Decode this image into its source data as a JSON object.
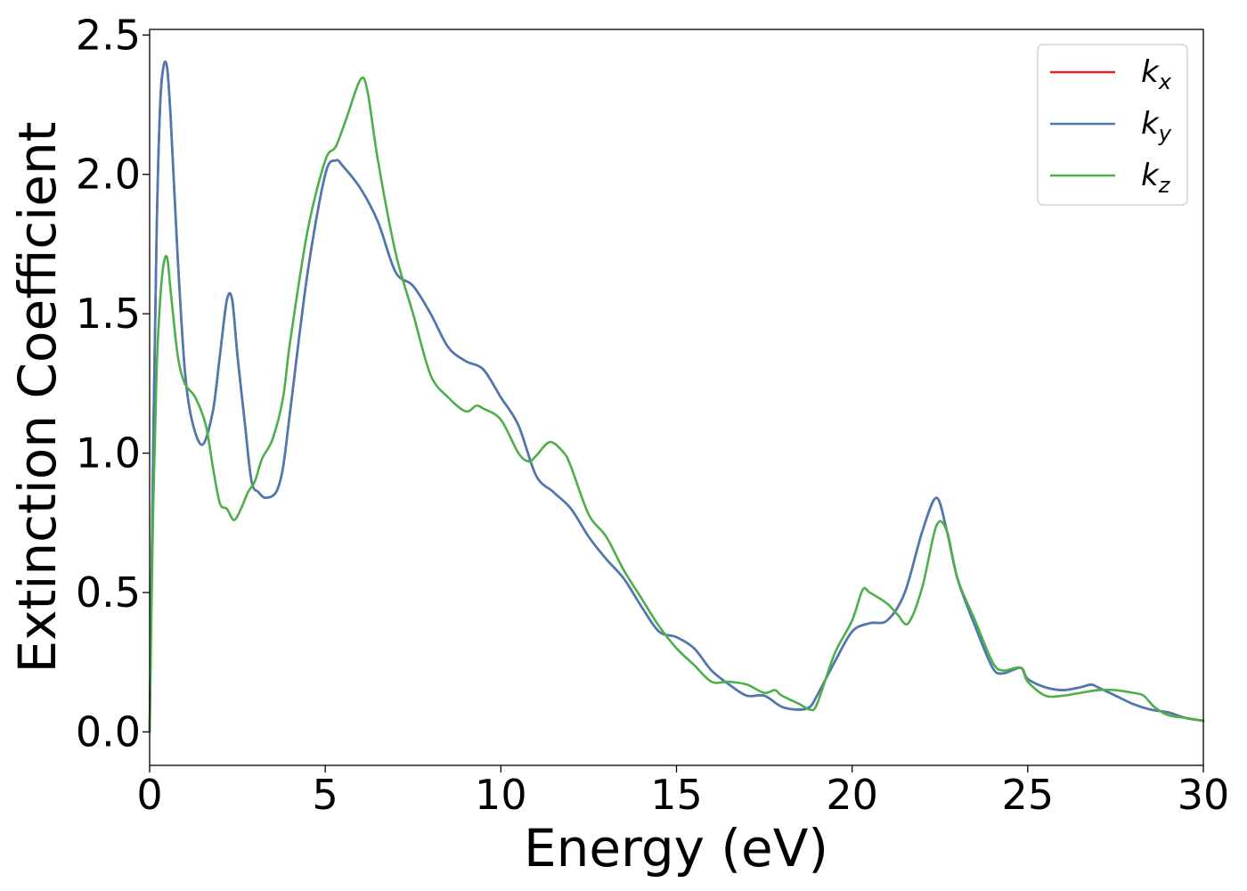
{
  "chart_data": {
    "type": "line",
    "title": "",
    "xlabel": "Energy (eV)",
    "ylabel": "Extinction Coefficient",
    "xlim": [
      0,
      30
    ],
    "ylim": [
      -0.12,
      2.52
    ],
    "xticks": [
      0,
      5,
      10,
      15,
      20,
      25,
      30
    ],
    "xtick_labels": [
      "0",
      "5",
      "10",
      "15",
      "20",
      "25",
      "30"
    ],
    "yticks": [
      0.0,
      0.5,
      1.0,
      1.5,
      2.0,
      2.5
    ],
    "ytick_labels": [
      "0.0",
      "0.5",
      "1.0",
      "1.5",
      "2.0",
      "2.5"
    ],
    "grid": false,
    "legend_position": "top-right",
    "series": [
      {
        "name": "k_x",
        "legend_main": "k",
        "legend_sub": "x",
        "color": "#d62728",
        "x": [
          0,
          0.1,
          0.2,
          0.3,
          0.4,
          0.5,
          0.6,
          0.8,
          1.0,
          1.2,
          1.5,
          1.8,
          2.0,
          2.2,
          2.35,
          2.5,
          2.7,
          2.9,
          3.1,
          3.3,
          3.6,
          3.8,
          4.0,
          4.5,
          5.0,
          5.3,
          5.5,
          6.0,
          6.5,
          7.0,
          7.5,
          8.0,
          8.5,
          9.0,
          9.5,
          10.0,
          10.5,
          11.0,
          11.5,
          12.0,
          12.5,
          13.0,
          13.5,
          14.0,
          14.5,
          15.0,
          15.5,
          16.0,
          16.5,
          17.0,
          17.5,
          18.0,
          18.5,
          18.8,
          19.0,
          19.5,
          20.0,
          20.5,
          21.0,
          21.5,
          22.0,
          22.4,
          22.7,
          23.0,
          23.5,
          24.0,
          24.3,
          24.8,
          25.0,
          25.5,
          26.0,
          26.5,
          26.8,
          27.0,
          27.5,
          28.0,
          28.5,
          29.0,
          29.5,
          30.0
        ],
        "y": [
          0.0,
          1.0,
          1.8,
          2.25,
          2.39,
          2.38,
          2.2,
          1.7,
          1.3,
          1.12,
          1.03,
          1.15,
          1.35,
          1.55,
          1.55,
          1.35,
          1.12,
          0.9,
          0.86,
          0.84,
          0.86,
          0.95,
          1.15,
          1.65,
          2.0,
          2.05,
          2.03,
          1.95,
          1.83,
          1.65,
          1.6,
          1.5,
          1.38,
          1.33,
          1.3,
          1.2,
          1.1,
          0.92,
          0.86,
          0.8,
          0.7,
          0.62,
          0.55,
          0.45,
          0.36,
          0.34,
          0.3,
          0.22,
          0.17,
          0.13,
          0.13,
          0.09,
          0.08,
          0.09,
          0.13,
          0.25,
          0.36,
          0.39,
          0.4,
          0.5,
          0.72,
          0.84,
          0.72,
          0.55,
          0.38,
          0.23,
          0.21,
          0.23,
          0.19,
          0.16,
          0.15,
          0.16,
          0.17,
          0.16,
          0.13,
          0.1,
          0.08,
          0.07,
          0.05,
          0.04
        ]
      },
      {
        "name": "k_y",
        "legend_main": "k",
        "legend_sub": "y",
        "color": "#4a7ab3",
        "x": [
          0,
          0.1,
          0.2,
          0.3,
          0.4,
          0.5,
          0.6,
          0.8,
          1.0,
          1.2,
          1.5,
          1.8,
          2.0,
          2.2,
          2.35,
          2.5,
          2.7,
          2.9,
          3.1,
          3.3,
          3.6,
          3.8,
          4.0,
          4.5,
          5.0,
          5.3,
          5.5,
          6.0,
          6.5,
          7.0,
          7.5,
          8.0,
          8.5,
          9.0,
          9.5,
          10.0,
          10.5,
          11.0,
          11.5,
          12.0,
          12.5,
          13.0,
          13.5,
          14.0,
          14.5,
          15.0,
          15.5,
          16.0,
          16.5,
          17.0,
          17.5,
          18.0,
          18.5,
          18.8,
          19.0,
          19.5,
          20.0,
          20.5,
          21.0,
          21.5,
          22.0,
          22.4,
          22.7,
          23.0,
          23.5,
          24.0,
          24.3,
          24.8,
          25.0,
          25.5,
          26.0,
          26.5,
          26.8,
          27.0,
          27.5,
          28.0,
          28.5,
          29.0,
          29.5,
          30.0
        ],
        "y": [
          0.0,
          1.0,
          1.8,
          2.25,
          2.39,
          2.38,
          2.2,
          1.7,
          1.3,
          1.12,
          1.03,
          1.15,
          1.35,
          1.55,
          1.55,
          1.35,
          1.12,
          0.9,
          0.86,
          0.84,
          0.86,
          0.95,
          1.15,
          1.65,
          2.0,
          2.05,
          2.03,
          1.95,
          1.83,
          1.65,
          1.6,
          1.5,
          1.38,
          1.33,
          1.3,
          1.2,
          1.1,
          0.92,
          0.86,
          0.8,
          0.7,
          0.62,
          0.55,
          0.45,
          0.36,
          0.34,
          0.3,
          0.22,
          0.17,
          0.13,
          0.13,
          0.09,
          0.08,
          0.09,
          0.13,
          0.25,
          0.36,
          0.39,
          0.4,
          0.5,
          0.72,
          0.84,
          0.72,
          0.55,
          0.38,
          0.23,
          0.21,
          0.23,
          0.19,
          0.16,
          0.15,
          0.16,
          0.17,
          0.16,
          0.13,
          0.1,
          0.08,
          0.07,
          0.05,
          0.04
        ]
      },
      {
        "name": "k_z",
        "legend_main": "k",
        "legend_sub": "z",
        "color": "#4daf4a",
        "x": [
          0,
          0.1,
          0.2,
          0.3,
          0.4,
          0.5,
          0.6,
          0.8,
          1.0,
          1.3,
          1.6,
          1.8,
          2.0,
          2.2,
          2.4,
          2.6,
          2.8,
          3.0,
          3.2,
          3.5,
          3.8,
          4.0,
          4.5,
          5.0,
          5.3,
          5.6,
          6.0,
          6.2,
          6.5,
          7.0,
          7.5,
          8.0,
          8.5,
          9.0,
          9.3,
          9.5,
          10.0,
          10.5,
          10.8,
          11.0,
          11.4,
          11.8,
          12.0,
          12.5,
          13.0,
          13.5,
          14.0,
          14.5,
          15.0,
          15.5,
          16.0,
          16.5,
          17.0,
          17.5,
          17.8,
          18.0,
          18.5,
          18.8,
          19.0,
          19.5,
          20.0,
          20.3,
          20.5,
          21.0,
          21.3,
          21.6,
          22.0,
          22.4,
          22.7,
          23.0,
          23.5,
          24.0,
          24.3,
          24.8,
          25.0,
          25.5,
          26.0,
          26.5,
          27.0,
          27.5,
          28.0,
          28.3,
          28.6,
          29.0,
          29.5,
          30.0
        ],
        "y": [
          0.0,
          0.8,
          1.3,
          1.55,
          1.68,
          1.7,
          1.58,
          1.35,
          1.25,
          1.2,
          1.1,
          0.95,
          0.82,
          0.8,
          0.76,
          0.8,
          0.86,
          0.9,
          0.98,
          1.05,
          1.2,
          1.4,
          1.8,
          2.05,
          2.1,
          2.2,
          2.34,
          2.3,
          2.05,
          1.72,
          1.5,
          1.28,
          1.2,
          1.15,
          1.17,
          1.16,
          1.12,
          1.0,
          0.97,
          0.99,
          1.04,
          1.0,
          0.95,
          0.78,
          0.7,
          0.58,
          0.48,
          0.38,
          0.3,
          0.24,
          0.18,
          0.18,
          0.17,
          0.14,
          0.15,
          0.13,
          0.1,
          0.08,
          0.1,
          0.28,
          0.4,
          0.51,
          0.5,
          0.46,
          0.42,
          0.39,
          0.52,
          0.74,
          0.72,
          0.55,
          0.4,
          0.25,
          0.22,
          0.23,
          0.18,
          0.13,
          0.13,
          0.14,
          0.15,
          0.15,
          0.14,
          0.13,
          0.09,
          0.06,
          0.05,
          0.04
        ]
      }
    ]
  }
}
